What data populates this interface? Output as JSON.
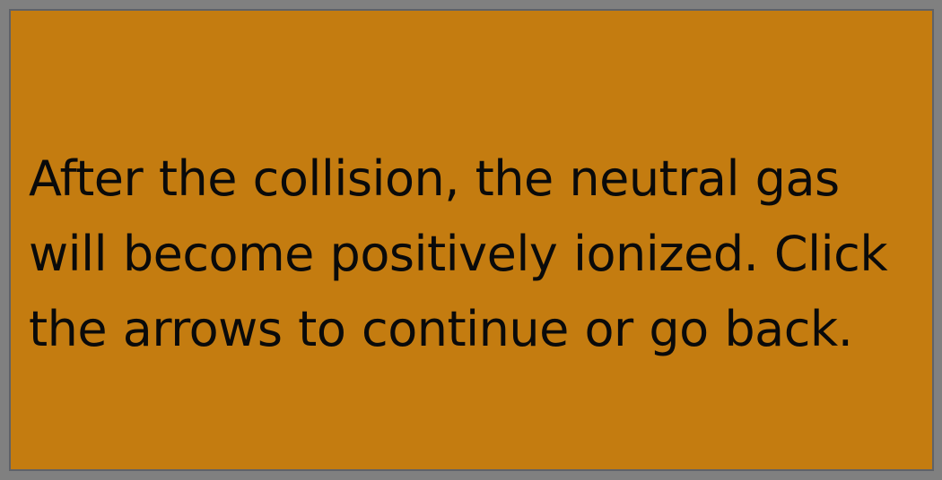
{
  "dialog": {
    "message": "After the collision, the neutral gas will become positively ionized. Click the arrows to continue or go back."
  },
  "colors": {
    "panel_background": "#c47c10",
    "panel_border": "#5f6268",
    "outer_frame": "#808080",
    "text": "#0a0a0a"
  }
}
